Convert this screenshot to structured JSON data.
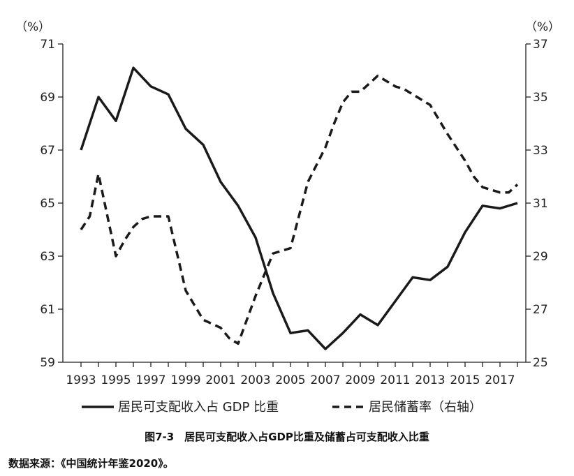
{
  "chart_data": {
    "type": "line",
    "title": "",
    "y_left_unit": "（%）",
    "y_right_unit": "（%）",
    "x_ticks": [
      "1993",
      "1995",
      "1997",
      "1999",
      "2001",
      "2003",
      "2005",
      "2007",
      "2009",
      "2011",
      "2013",
      "2015",
      "2017"
    ],
    "y_left_ticks": [
      71,
      69,
      67,
      65,
      63,
      61,
      59
    ],
    "y_right_ticks": [
      37,
      35,
      33,
      31,
      29,
      27,
      25
    ],
    "y_left_range": [
      59,
      71
    ],
    "y_right_range": [
      25,
      37
    ],
    "x_range": [
      1992.9,
      2018.1
    ],
    "grid": false,
    "legend_position": "bottom",
    "series": [
      {
        "name": "居民可支配收入占 GDP 比重",
        "axis": "left",
        "style": "solid",
        "x": [
          1993,
          1994,
          1995,
          1996,
          1997,
          1998,
          1999,
          2000,
          2001,
          2002,
          2003,
          2004,
          2005,
          2006,
          2007,
          2008,
          2009,
          2010,
          2011,
          2012,
          2013,
          2014,
          2015,
          2016,
          2017,
          2018
        ],
        "y": [
          67.0,
          69.0,
          68.1,
          70.1,
          69.4,
          69.1,
          67.8,
          67.2,
          65.8,
          64.9,
          63.7,
          61.6,
          60.1,
          60.2,
          59.5,
          60.1,
          60.8,
          60.4,
          61.3,
          62.2,
          62.1,
          62.6,
          63.9,
          64.9,
          64.8,
          65.0
        ]
      },
      {
        "name": "居民储蓄率（右轴）",
        "axis": "right",
        "style": "dashed",
        "x": [
          1993,
          1993.5,
          1994,
          1995,
          1995.5,
          1996,
          1996.5,
          1997,
          1998,
          1999,
          2000,
          2001,
          2001.5,
          2002,
          2002.5,
          2003,
          2003.5,
          2004,
          2005,
          2006,
          2007,
          2007.5,
          2008,
          2008.5,
          2009,
          2009.5,
          2010,
          2010.5,
          2011,
          2011.5,
          2012,
          2012.5,
          2013,
          2014,
          2015,
          2015.5,
          2016,
          2016.5,
          2017,
          2017.5,
          2018
        ],
        "y": [
          30.0,
          30.5,
          32.1,
          29.0,
          29.6,
          30.1,
          30.4,
          30.5,
          30.5,
          27.7,
          26.6,
          26.3,
          25.9,
          25.7,
          26.6,
          27.5,
          28.3,
          29.1,
          29.3,
          31.8,
          33.1,
          34.0,
          34.8,
          35.2,
          35.2,
          35.5,
          35.8,
          35.6,
          35.4,
          35.3,
          35.1,
          34.9,
          34.7,
          33.6,
          32.6,
          32.0,
          31.6,
          31.5,
          31.4,
          31.4,
          31.7
        ]
      }
    ]
  },
  "caption": "图7-3　居民可支配收入占GDP比重及储蓄占可支配收入比重",
  "source": "数据来源：《中国统计年鉴2020》。"
}
